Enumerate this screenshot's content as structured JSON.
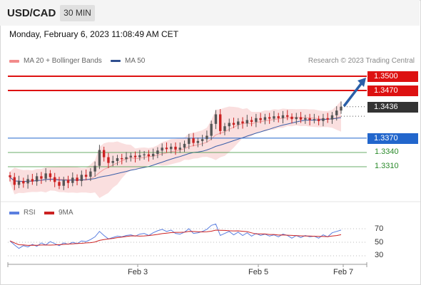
{
  "header": {
    "symbol": "USD/CAD",
    "timeframe": "30 MIN",
    "datetime": "Monday, February 6, 2023 11:08:49 AM CET"
  },
  "legend": {
    "ma20_label": "MA 20 + Bollinger Bands",
    "ma50_label": "MA 50",
    "copyright": "Research © 2023 Trading Central"
  },
  "levels": {
    "r2": "1.3500",
    "r1": "1.3470",
    "last": "1.3436",
    "pivot": "1.3370",
    "s1": "1.3340",
    "s2": "1.3310"
  },
  "rsi_legend": {
    "rsi_label": "RSI",
    "ma_label": "9MA"
  },
  "rsi_axis": {
    "t70": "70",
    "t50": "50",
    "t30": "30"
  },
  "x_axis": {
    "d1": "Feb 3",
    "d2": "Feb 5",
    "d3": "Feb 7"
  },
  "colors": {
    "resistance": "#dd1111",
    "pivot": "#2266cc",
    "support": "#2a8a2a",
    "last": "#333333",
    "bull_candle": "#555555",
    "bear_candle": "#cc2222",
    "ma50": "#3a5ea8",
    "bollinger": "#f7c9c9",
    "rsi_line": "#5b7fe0",
    "rsi_ma": "#cc2222",
    "arrow": "#2a5fa8"
  },
  "chart_data": {
    "type": "candlestick",
    "symbol": "USD/CAD",
    "timeframe": "30 MIN",
    "x_ticks": [
      "Feb 3",
      "Feb 5",
      "Feb 7"
    ],
    "levels": [
      {
        "value": 1.35,
        "role": "resistance"
      },
      {
        "value": 1.347,
        "role": "resistance"
      },
      {
        "value": 1.3436,
        "role": "last"
      },
      {
        "value": 1.337,
        "role": "pivot"
      },
      {
        "value": 1.334,
        "role": "support"
      },
      {
        "value": 1.331,
        "role": "support"
      }
    ],
    "closes": [
      1.3288,
      1.3272,
      1.328,
      1.3275,
      1.3284,
      1.3279,
      1.329,
      1.3285,
      1.3296,
      1.3288,
      1.3278,
      1.327,
      1.3282,
      1.3276,
      1.3287,
      1.328,
      1.3293,
      1.3289,
      1.33,
      1.3312,
      1.3345,
      1.333,
      1.3318,
      1.3322,
      1.3328,
      1.3326,
      1.333,
      1.3333,
      1.333,
      1.3334,
      1.3336,
      1.3332,
      1.3337,
      1.3344,
      1.335,
      1.3347,
      1.3352,
      1.3346,
      1.335,
      1.3358,
      1.337,
      1.336,
      1.3364,
      1.3368,
      1.3375,
      1.34,
      1.342,
      1.3385,
      1.3395,
      1.3402,
      1.3398,
      1.3405,
      1.3401,
      1.3408,
      1.3404,
      1.3412,
      1.3408,
      1.3414,
      1.3411,
      1.3416,
      1.3412,
      1.3418,
      1.3415,
      1.341,
      1.3414,
      1.3409,
      1.3412,
      1.3408,
      1.341,
      1.3406,
      1.3412,
      1.3409,
      1.3418,
      1.3428,
      1.3436
    ],
    "rsi": [
      52,
      46,
      41,
      45,
      43,
      47,
      44,
      49,
      46,
      51,
      48,
      45,
      49,
      47,
      50,
      48,
      52,
      51,
      54,
      58,
      66,
      60,
      55,
      57,
      59,
      58,
      60,
      61,
      59,
      62,
      63,
      60,
      64,
      67,
      69,
      66,
      68,
      63,
      62,
      65,
      70,
      63,
      64,
      66,
      69,
      75,
      77,
      60,
      63,
      66,
      61,
      65,
      60,
      64,
      59,
      63,
      60,
      62,
      59,
      61,
      58,
      62,
      60,
      56,
      60,
      57,
      60,
      58,
      59,
      56,
      61,
      58,
      64,
      66,
      68
    ],
    "rsi_axis": [
      30,
      50,
      70
    ]
  }
}
